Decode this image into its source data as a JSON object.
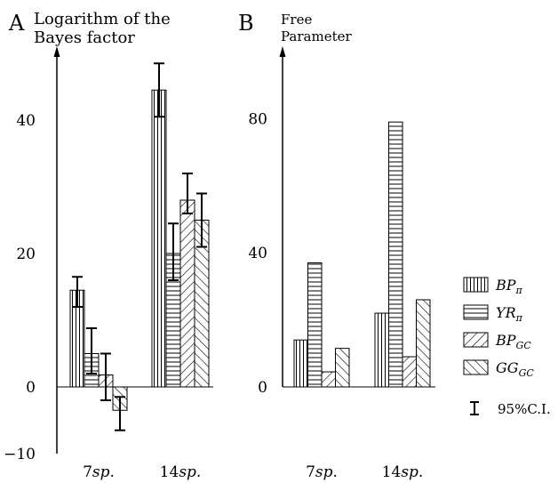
{
  "chart_data": [
    {
      "panel_letter": "A",
      "type": "bar",
      "ylabel_lines": [
        "Logarithm of the",
        "Bayes factor"
      ],
      "categories": [
        "7sp.",
        "14sp."
      ],
      "ylim": [
        -10,
        50
      ],
      "yticks": [
        -10,
        0,
        20,
        40
      ],
      "series": [
        {
          "name": "BPπ",
          "pattern": "vertical",
          "values": [
            14.5,
            44.5
          ],
          "ci_low": [
            12,
            40.5
          ],
          "ci_high": [
            16.5,
            48.5
          ]
        },
        {
          "name": "YRπ",
          "pattern": "horizontal",
          "values": [
            5,
            20
          ],
          "ci_low": [
            2,
            16
          ],
          "ci_high": [
            8.8,
            24.5
          ]
        },
        {
          "name": "BPGC",
          "pattern": "backslash",
          "values": [
            1.8,
            28
          ],
          "ci_low": [
            -2,
            26
          ],
          "ci_high": [
            5,
            32
          ]
        },
        {
          "name": "GGGC",
          "pattern": "slash",
          "values": [
            -3.5,
            25
          ],
          "ci_low": [
            -6.5,
            21
          ],
          "ci_high": [
            -1.5,
            29
          ]
        }
      ]
    },
    {
      "panel_letter": "B",
      "type": "bar",
      "ylabel_lines": [
        "Free",
        "Parameter"
      ],
      "categories": [
        "7sp.",
        "14sp."
      ],
      "ylim": [
        0,
        100
      ],
      "yticks": [
        0,
        40,
        80
      ],
      "series": [
        {
          "name": "BPπ",
          "pattern": "vertical",
          "values": [
            14,
            22
          ]
        },
        {
          "name": "YRπ",
          "pattern": "horizontal",
          "values": [
            37,
            79
          ]
        },
        {
          "name": "BPGC",
          "pattern": "backslash",
          "values": [
            4.5,
            9
          ]
        },
        {
          "name": "GGGC",
          "pattern": "slash",
          "values": [
            11.5,
            26
          ]
        }
      ]
    }
  ],
  "legend": {
    "placement": "right",
    "entries": [
      {
        "main": "BP",
        "sub": "π",
        "pattern": "vertical"
      },
      {
        "main": "YR",
        "sub": "π",
        "pattern": "horizontal"
      },
      {
        "main": "BP",
        "sub": "GC",
        "pattern": "backslash"
      },
      {
        "main": "GG",
        "sub": "GC",
        "pattern": "slash"
      }
    ],
    "ci_label": "95%C.I."
  }
}
